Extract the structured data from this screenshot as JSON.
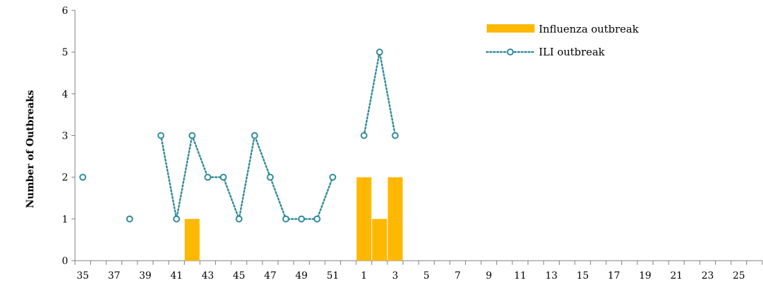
{
  "chart_data": {
    "type": "bar+line",
    "title": "",
    "xlabel": "",
    "ylabel": "Number of Outbreaks",
    "ylim": [
      0,
      6
    ],
    "yticks": [
      0,
      1,
      2,
      3,
      4,
      5,
      6
    ],
    "grid": false,
    "legend_position": "top-right",
    "categories": [
      "35",
      "36",
      "37",
      "38",
      "39",
      "40",
      "41",
      "42",
      "43",
      "44",
      "45",
      "46",
      "47",
      "48",
      "49",
      "50",
      "51",
      "52",
      "1",
      "2",
      "3",
      "4",
      "5",
      "6",
      "7",
      "8",
      "9",
      "10",
      "11",
      "12",
      "13",
      "14",
      "15",
      "16",
      "17",
      "18",
      "19",
      "20",
      "21",
      "22",
      "23",
      "24",
      "25",
      "26"
    ],
    "x_tick_labels": [
      "35",
      "37",
      "39",
      "41",
      "43",
      "45",
      "47",
      "49",
      "51",
      "1",
      "3",
      "5",
      "7",
      "9",
      "11",
      "13",
      "15",
      "17",
      "19",
      "21",
      "23",
      "25"
    ],
    "series": [
      {
        "name": "Influenza outbreak",
        "type": "bar",
        "color": "#FFB800",
        "values": [
          null,
          null,
          null,
          null,
          null,
          null,
          null,
          1,
          null,
          null,
          null,
          null,
          null,
          null,
          null,
          null,
          null,
          null,
          2,
          1,
          2,
          null,
          null,
          null,
          null,
          null,
          null,
          null,
          null,
          null,
          null,
          null,
          null,
          null,
          null,
          null,
          null,
          null,
          null,
          null,
          null,
          null,
          null,
          null
        ]
      },
      {
        "name": "ILI outbreak",
        "type": "line",
        "line_style": "dotted",
        "marker": "open-circle",
        "color": "#2E8B99",
        "values": [
          2,
          null,
          null,
          1,
          null,
          3,
          1,
          3,
          2,
          2,
          1,
          3,
          2,
          1,
          1,
          1,
          2,
          null,
          3,
          5,
          3,
          null,
          null,
          null,
          null,
          null,
          null,
          null,
          null,
          null,
          null,
          null,
          null,
          null,
          null,
          null,
          null,
          null,
          null,
          null,
          null,
          null,
          null,
          null
        ]
      }
    ]
  }
}
